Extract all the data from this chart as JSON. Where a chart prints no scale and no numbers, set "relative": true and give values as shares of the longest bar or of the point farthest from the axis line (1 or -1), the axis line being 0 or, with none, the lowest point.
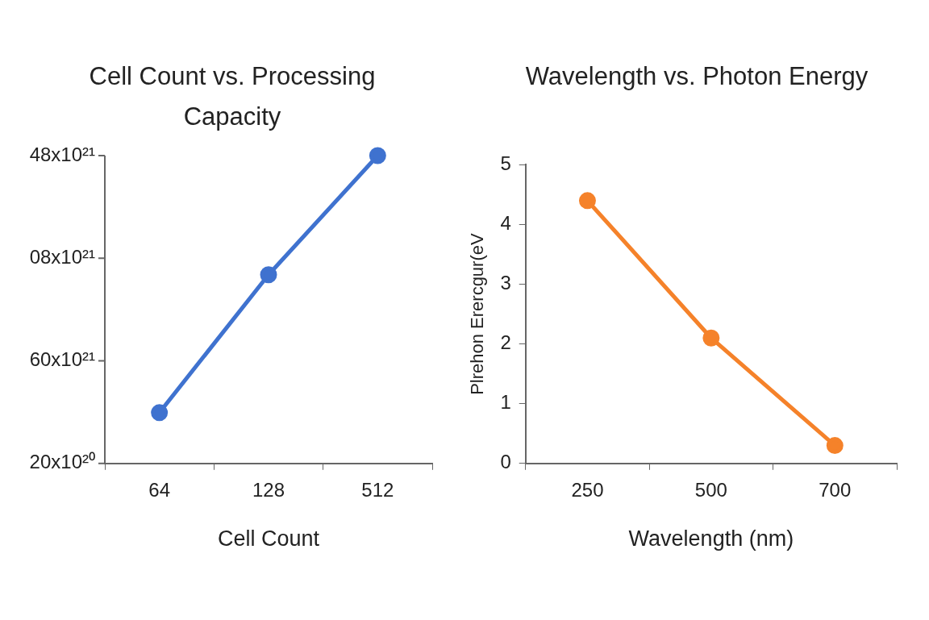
{
  "chart_data": [
    {
      "type": "line",
      "title": "Cell Count vs. Processing Capacity",
      "xlabel": "Cell Count",
      "categories": [
        "64",
        "128",
        "512"
      ],
      "series": [
        {
          "color": "#3f72cf",
          "values": [
            0.165,
            0.613,
            1
          ]
        }
      ],
      "relative": true,
      "annotations": [
        "48x10²¹",
        "08x10²¹",
        "60x10²¹",
        "20x10²⁰"
      ],
      "grid": false,
      "legend": false,
      "marker": "circle",
      "line_style": "solid"
    },
    {
      "type": "line",
      "title": "Wavelength vs. Photon Energy",
      "xlabel": "Wavelength (nm)",
      "ylabel": "Plrehon Erercgur(eV",
      "categories": [
        "250",
        "500",
        "700"
      ],
      "series": [
        {
          "color": "#f5822a",
          "values": [
            4.4,
            2.1,
            0.3
          ]
        }
      ],
      "ylim": [
        0,
        5
      ],
      "yticks": [
        0,
        1,
        2,
        3,
        4,
        5
      ],
      "grid": false,
      "legend": false,
      "marker": "circle",
      "line_style": "solid"
    }
  ]
}
